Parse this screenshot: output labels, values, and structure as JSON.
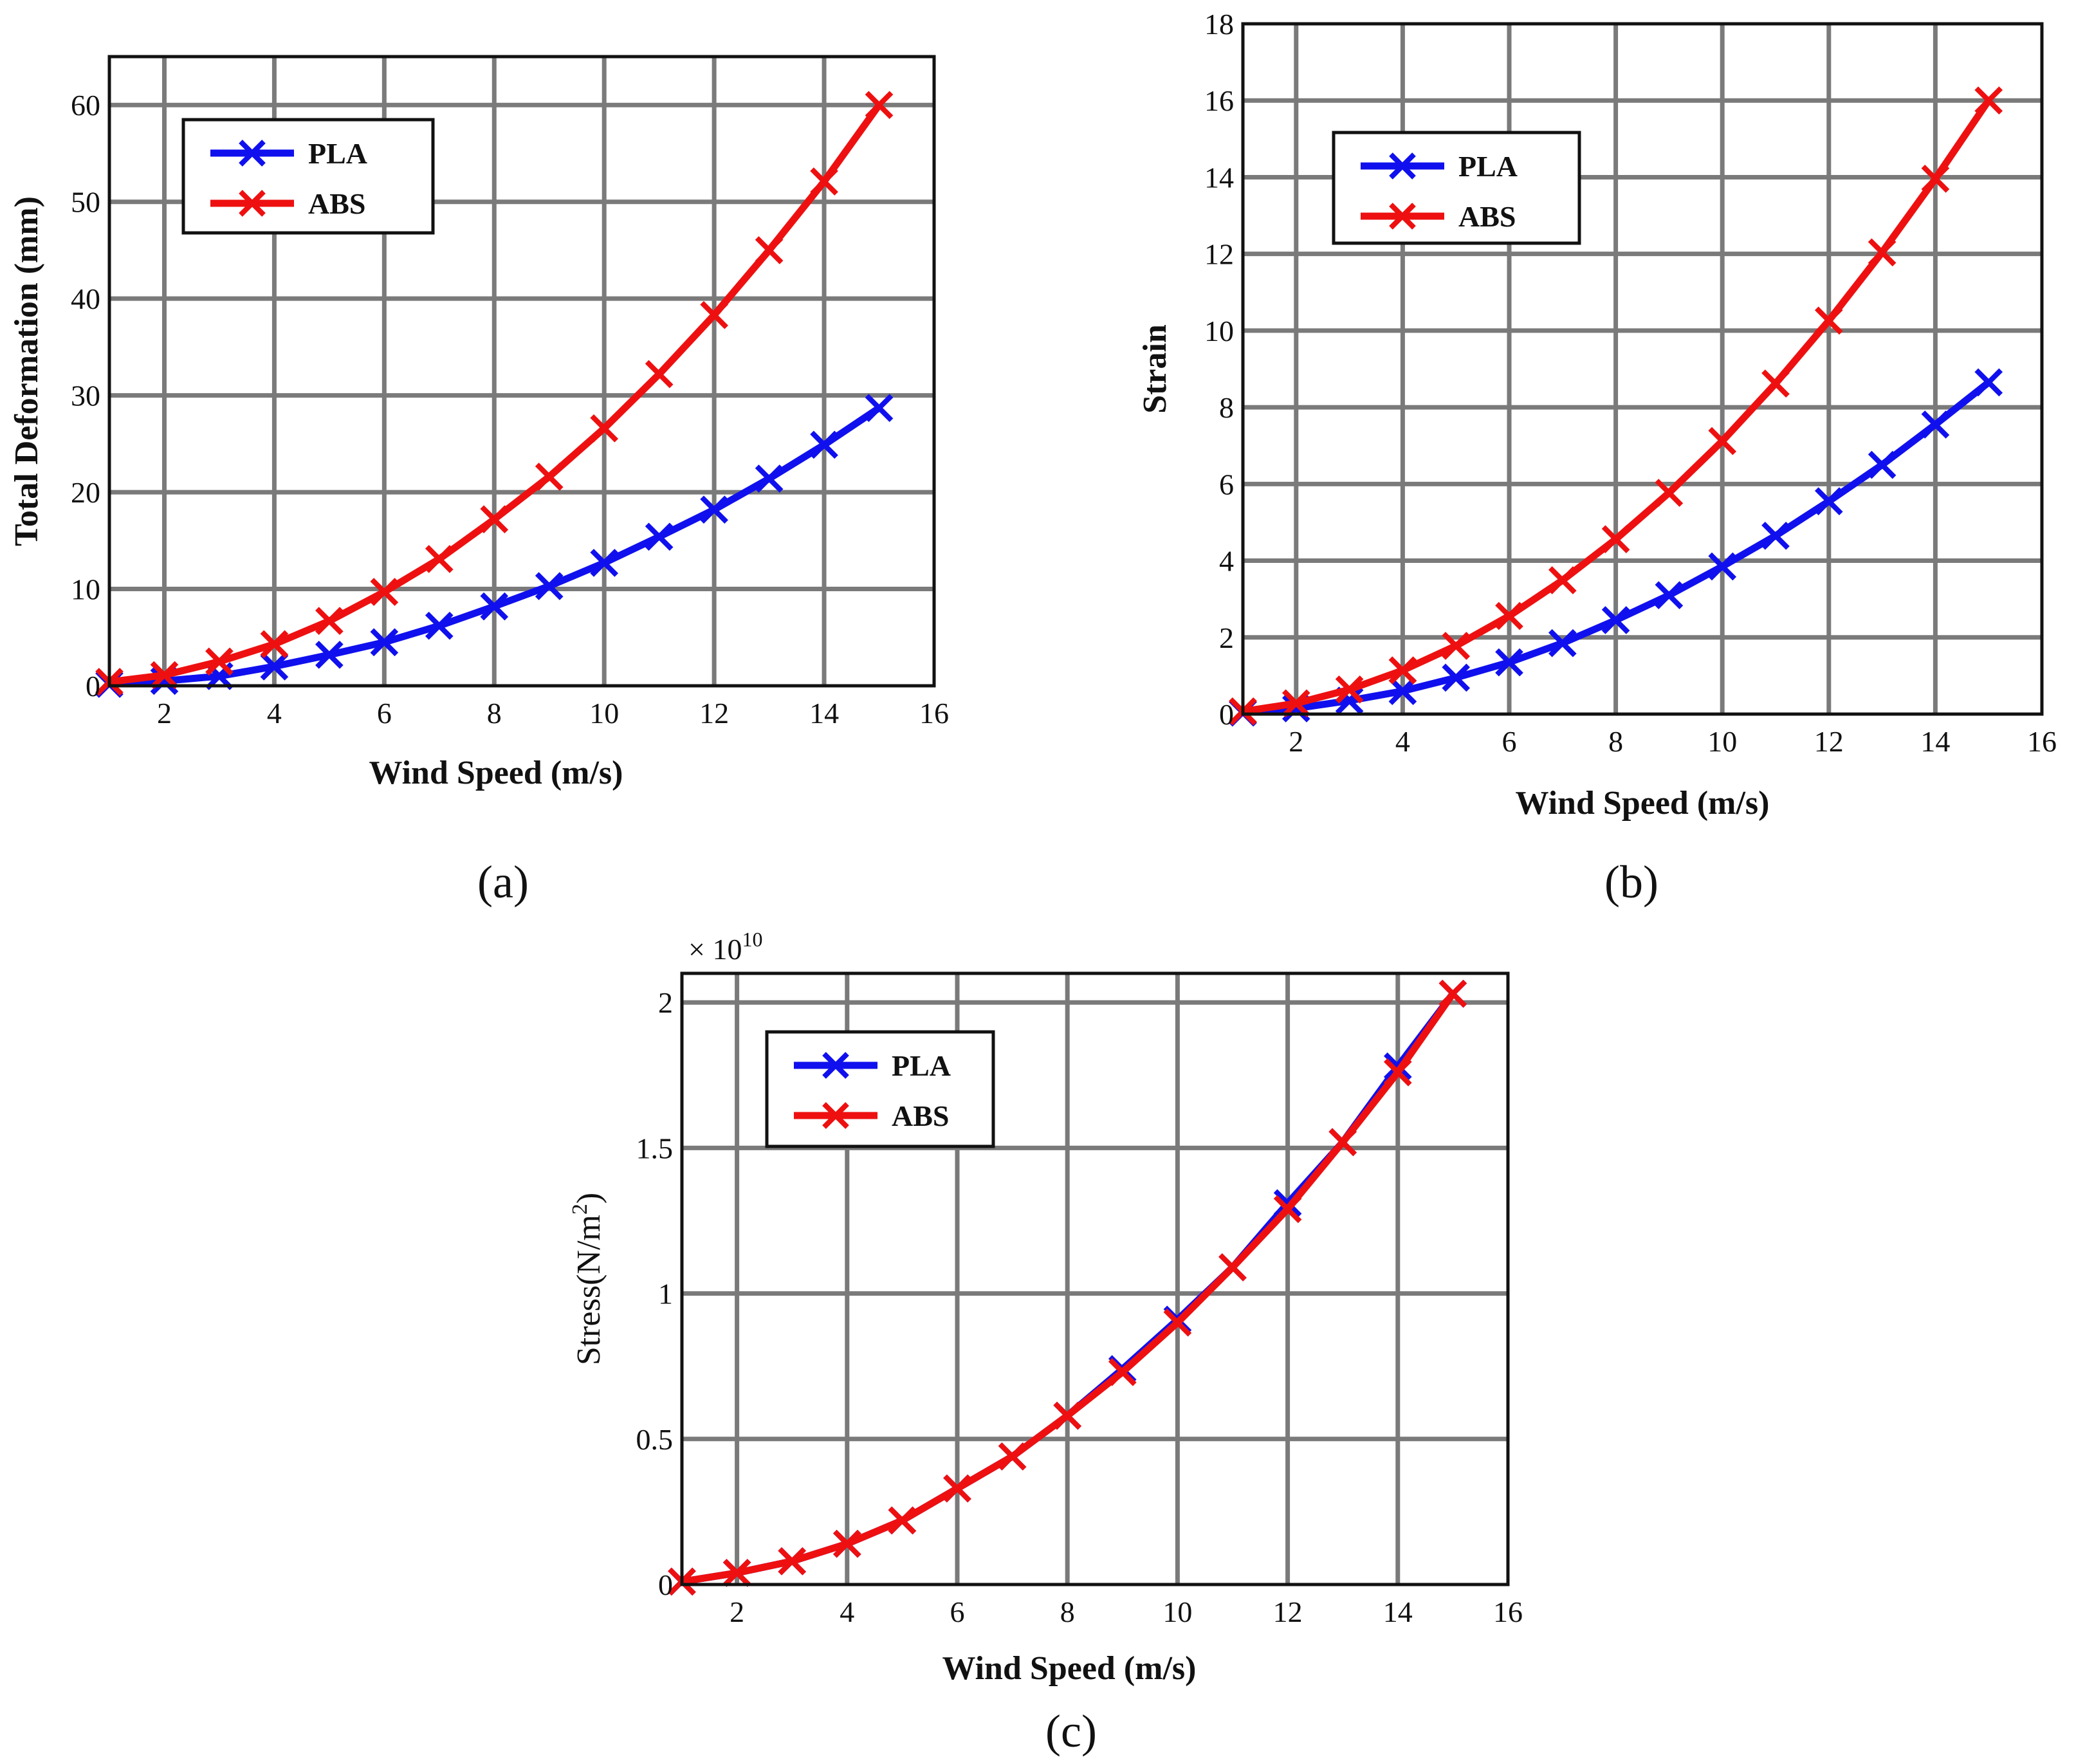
{
  "figure": {
    "captions": [
      "(a)",
      "(b)",
      "(c)"
    ]
  },
  "colors": {
    "PLA": "#1010ee",
    "ABS": "#ee1010",
    "grid": "#7a7a7a",
    "axis": "#111111"
  },
  "chart_data": [
    {
      "id": "a",
      "type": "line",
      "title": "",
      "xlabel": "Wind Speed (m/s)",
      "ylabel": "Total Deformation (mm)",
      "xlim": [
        1,
        16
      ],
      "ylim": [
        0,
        65
      ],
      "xticks": [
        2,
        4,
        6,
        8,
        10,
        12,
        14,
        16
      ],
      "yticks": [
        0,
        10,
        20,
        30,
        40,
        50,
        60
      ],
      "legend_position": "top-left",
      "x": [
        1,
        2,
        3,
        4,
        5,
        6,
        7,
        8,
        9,
        10,
        11,
        12,
        13,
        14,
        15
      ],
      "series": [
        {
          "name": "PLA",
          "color": "#1010ee",
          "marker": "x",
          "values": [
            0.2,
            0.5,
            1.0,
            2.0,
            3.2,
            4.5,
            6.2,
            8.2,
            10.3,
            12.7,
            15.4,
            18.2,
            21.4,
            24.9,
            28.7
          ]
        },
        {
          "name": "ABS",
          "color": "#ee1010",
          "marker": "x",
          "values": [
            0.4,
            1.1,
            2.5,
            4.3,
            6.7,
            9.7,
            13.1,
            17.2,
            21.6,
            26.6,
            32.2,
            38.3,
            45.0,
            52.1,
            60.0
          ]
        }
      ]
    },
    {
      "id": "b",
      "type": "line",
      "title": "",
      "xlabel": "Wind Speed (m/s)",
      "ylabel": "Strain",
      "xlim": [
        1,
        16
      ],
      "ylim": [
        0,
        18
      ],
      "xticks": [
        2,
        4,
        6,
        8,
        10,
        12,
        14,
        16
      ],
      "yticks": [
        0,
        2,
        4,
        6,
        8,
        10,
        12,
        14,
        16,
        18
      ],
      "legend_position": "top-left",
      "x": [
        1,
        2,
        3,
        4,
        5,
        6,
        7,
        8,
        9,
        10,
        11,
        12,
        13,
        14,
        15
      ],
      "series": [
        {
          "name": "PLA",
          "color": "#1010ee",
          "marker": "x",
          "values": [
            0.04,
            0.15,
            0.35,
            0.6,
            0.95,
            1.35,
            1.85,
            2.45,
            3.1,
            3.85,
            4.65,
            5.55,
            6.5,
            7.55,
            8.65
          ]
        },
        {
          "name": "ABS",
          "color": "#ee1010",
          "marker": "x",
          "values": [
            0.07,
            0.28,
            0.64,
            1.14,
            1.78,
            2.56,
            3.49,
            4.56,
            5.77,
            7.12,
            8.62,
            10.26,
            12.04,
            13.96,
            16.0
          ]
        }
      ]
    },
    {
      "id": "c",
      "type": "line",
      "title": "",
      "xlabel": "Wind Speed (m/s)",
      "ylabel": "Stress(N/m",
      "ylabel_sup": "2",
      "ylabel_suffix": ")",
      "exponent_label": "× 10",
      "exponent_power": "10",
      "xlim": [
        1,
        16
      ],
      "ylim": [
        0,
        2.1
      ],
      "xticks": [
        2,
        4,
        6,
        8,
        10,
        12,
        14,
        16
      ],
      "yticks": [
        0,
        0.5,
        1,
        1.5,
        2
      ],
      "ytick_labels": [
        "0",
        "0.5",
        "1",
        "1.5",
        "2"
      ],
      "legend_position": "top-left",
      "x": [
        1,
        2,
        3,
        4,
        5,
        6,
        7,
        8,
        9,
        10,
        11,
        12,
        13,
        14,
        15
      ],
      "series": [
        {
          "name": "PLA",
          "color": "#1010ee",
          "marker": "x",
          "values": [
            0.01,
            0.04,
            0.08,
            0.14,
            0.22,
            0.33,
            0.44,
            0.58,
            0.74,
            0.91,
            1.09,
            1.31,
            1.52,
            1.78,
            2.03
          ]
        },
        {
          "name": "ABS",
          "color": "#ee1010",
          "marker": "x",
          "values": [
            0.01,
            0.04,
            0.08,
            0.14,
            0.22,
            0.33,
            0.44,
            0.58,
            0.73,
            0.9,
            1.09,
            1.29,
            1.52,
            1.76,
            2.03
          ]
        }
      ]
    }
  ]
}
